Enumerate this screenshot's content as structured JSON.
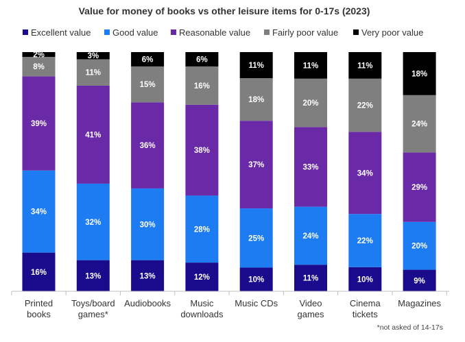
{
  "chart_data": {
    "type": "bar",
    "stacked": true,
    "percent": true,
    "title": "Value for money of books vs other leisure items for 0-17s (2023)",
    "footnote": "*not asked of 14-17s",
    "legend_position": "top",
    "categories": [
      [
        "Printed",
        "books"
      ],
      [
        "Toys/board",
        "games*"
      ],
      [
        "Audiobooks"
      ],
      [
        "Music",
        "downloads"
      ],
      [
        "Music CDs"
      ],
      [
        "Video",
        "games"
      ],
      [
        "Cinema",
        "tickets"
      ],
      [
        "Magazines"
      ]
    ],
    "series": [
      {
        "name": "Excellent value",
        "color": "#1a0a8c",
        "label_color": "#ffffff",
        "values": [
          16,
          13,
          13,
          12,
          10,
          11,
          10,
          9
        ]
      },
      {
        "name": "Good value",
        "color": "#1e7cf2",
        "label_color": "#ffffff",
        "values": [
          34,
          32,
          30,
          28,
          25,
          24,
          22,
          20
        ]
      },
      {
        "name": "Reasonable value",
        "color": "#6a2aa8",
        "label_color": "#ffffff",
        "values": [
          39,
          41,
          36,
          38,
          37,
          33,
          34,
          29
        ]
      },
      {
        "name": "Fairly poor value",
        "color": "#7f7f7f",
        "label_color": "#ffffff",
        "values": [
          8,
          11,
          15,
          16,
          18,
          20,
          22,
          24
        ]
      },
      {
        "name": "Very poor value",
        "color": "#000000",
        "label_color": "#ffffff",
        "values": [
          2,
          3,
          6,
          6,
          11,
          11,
          11,
          18
        ]
      }
    ],
    "value_suffix": "%",
    "gridlines": false
  }
}
